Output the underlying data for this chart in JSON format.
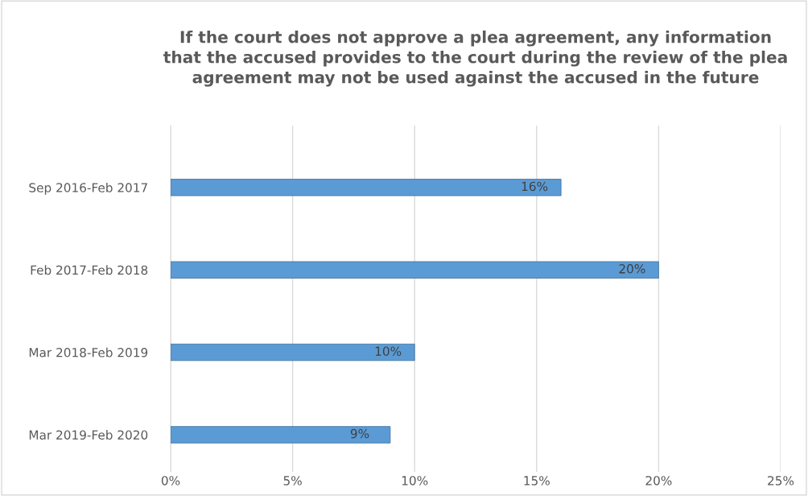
{
  "chart_data": {
    "type": "bar",
    "orientation": "horizontal",
    "title": "If the court does not approve a plea agreement, any information\nthat the accused provides to the court during the review of the plea\nagreement may not be used against the accused in the future",
    "categories": [
      "Sep 2016-Feb 2017",
      "Feb 2017-Feb 2018",
      "Mar 2018-Feb 2019",
      "Mar 2019-Feb 2020"
    ],
    "values": [
      16,
      20,
      10,
      9
    ],
    "value_labels": [
      "16%",
      "20%",
      "10%",
      "9%"
    ],
    "color": "#5b9bd5",
    "xlim": [
      0,
      25
    ],
    "xticks": [
      {
        "value": 0,
        "label": "0%"
      },
      {
        "value": 5,
        "label": "5%"
      },
      {
        "value": 10,
        "label": "10%"
      },
      {
        "value": 15,
        "label": "15%"
      },
      {
        "value": 20,
        "label": "20%"
      },
      {
        "value": 25,
        "label": "25%"
      }
    ],
    "grid": "x",
    "legend": false
  }
}
